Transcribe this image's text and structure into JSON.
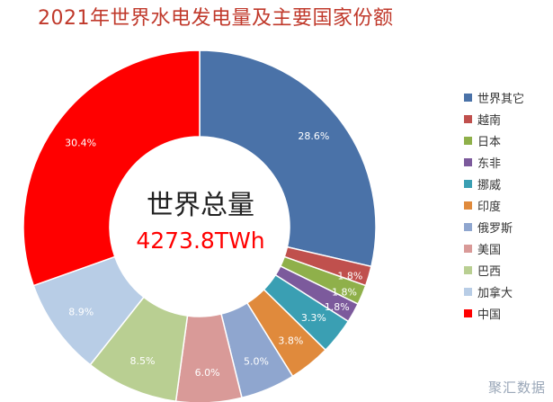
{
  "chart_data": {
    "type": "pie",
    "title": "2021年世界水电发电量及主要国家份额",
    "center_label": "世界总量",
    "center_value": "4273.8TWh",
    "categories": [
      "世界其它",
      "越南",
      "日本",
      "东非",
      "挪威",
      "印度",
      "俄罗斯",
      "美国",
      "巴西",
      "加拿大",
      "中国"
    ],
    "values": [
      28.6,
      1.8,
      1.8,
      1.8,
      3.3,
      3.8,
      5.0,
      6.0,
      8.5,
      8.9,
      30.4
    ],
    "labels": [
      "28.6%",
      "1.8%",
      "1.8%",
      "1.8%",
      "3.3%",
      "3.8%",
      "5.0%",
      "6.0%",
      "8.5%",
      "8.9%",
      "30.4%"
    ],
    "colors": [
      "#4a72a8",
      "#c0504d",
      "#8fb04a",
      "#7c5a9c",
      "#3a9fb3",
      "#e08a3c",
      "#8fa6cf",
      "#d99a98",
      "#b9cf92",
      "#b8cde6",
      "#ff0000"
    ],
    "legend_position": "right"
  },
  "watermark": "聚汇数据"
}
